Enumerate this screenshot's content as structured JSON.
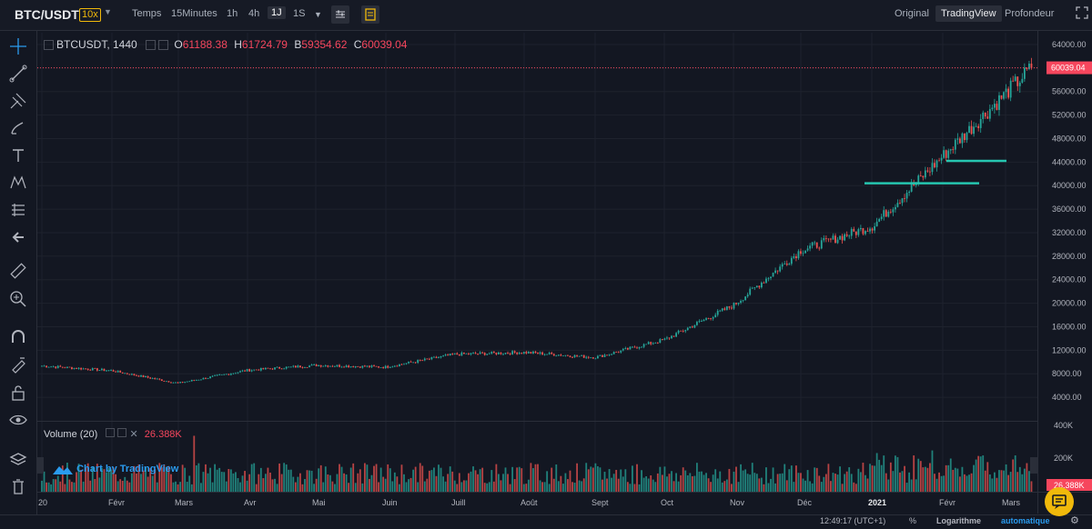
{
  "header": {
    "symbol": "BTC/USDT",
    "leverage": "10x",
    "time_label": "Temps",
    "intervals": [
      "15Minutes",
      "1h",
      "4h",
      "1J",
      "1S"
    ],
    "active_interval": "1J",
    "views": [
      "Original",
      "TradingView",
      "Profondeur"
    ],
    "active_view": "TradingView"
  },
  "legend": {
    "ticker": "BTCUSDT, 1440",
    "o_label": "O",
    "o_value": "61188.38",
    "h_label": "H",
    "h_value": "61724.79",
    "b_label": "B",
    "b_value": "59354.62",
    "c_label": "C",
    "c_value": "60039.04"
  },
  "volume_legend": {
    "label": "Volume (20)",
    "value": "26.388K"
  },
  "watermark": "Chart by TradingView",
  "price_axis": {
    "ticks": [
      "64000.00",
      "60000.00",
      "56000.00",
      "52000.00",
      "48000.00",
      "44000.00",
      "40000.00",
      "36000.00",
      "32000.00",
      "28000.00",
      "24000.00",
      "20000.00",
      "16000.00",
      "12000.00",
      "8000.00",
      "4000.00"
    ],
    "current_price": "60039.04"
  },
  "volume_axis": {
    "ticks": [
      "400K",
      "200K"
    ],
    "current": "26.388K"
  },
  "time_axis": [
    "20",
    "Févr",
    "Mars",
    "Avr",
    "Mai",
    "Juin",
    "Juill",
    "Août",
    "Sept",
    "Oct",
    "Nov",
    "Déc",
    "2021",
    "Févr",
    "Mars"
  ],
  "footer": {
    "time": "12:49:17 (UTC+1)",
    "percent": "%",
    "log": "Logarithme",
    "auto": "automatique"
  },
  "colors": {
    "up": "#26a69a",
    "down": "#ef5350",
    "background": "#131722",
    "price_line": "#f6465d",
    "accent": "#f0b90b"
  },
  "chart_data": {
    "type": "candlestick",
    "symbol": "BTCUSDT",
    "interval": "1440",
    "ylim": [
      0,
      66000
    ],
    "series": [
      {
        "name": "close",
        "x": [
          "2020-01",
          "2020-02",
          "2020-03",
          "2020-04",
          "2020-05",
          "2020-06",
          "2020-07",
          "2020-08",
          "2020-09",
          "2020-10",
          "2020-11",
          "2020-12",
          "2021-01",
          "2021-02",
          "2021-03"
        ],
        "values": [
          9350,
          8550,
          6400,
          8600,
          9450,
          9150,
          11300,
          11650,
          10800,
          13800,
          19700,
          29000,
          33100,
          45200,
          60039.04
        ]
      }
    ],
    "volume": {
      "ylim": [
        0,
        400000
      ],
      "peak": 400000
    },
    "annotations": [
      {
        "type": "horizontal-segment",
        "price": 40400
      },
      {
        "type": "horizontal-segment",
        "price": 44200
      }
    ]
  }
}
